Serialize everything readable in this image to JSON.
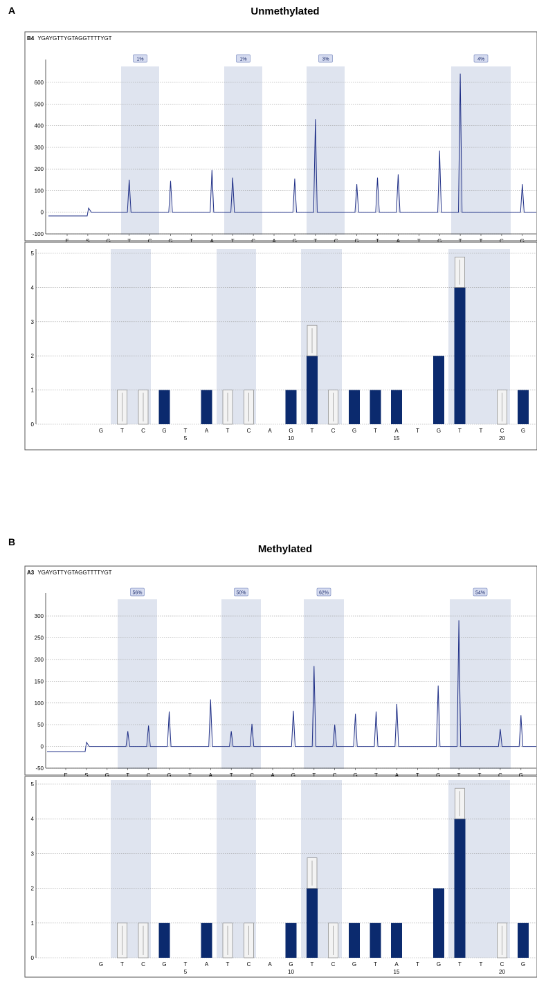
{
  "colors": {
    "trace": "#1f2f86",
    "bar": "#0b2a6e",
    "shade": "#dfe4ef",
    "badge_fill": "#d6dcf0",
    "badge_stroke": "#7f8fc2",
    "grid": "#9a9a9a",
    "frame": "#555555"
  },
  "panels": [
    {
      "letter": "A",
      "title": "Unmethylated",
      "well": "B4",
      "sequence": "YGAYGTTYGTAGGTTTTYGT",
      "percents": [
        "1%",
        "1%",
        "3%",
        "4%"
      ],
      "pyrogram_ticks": [
        "600",
        "500",
        "400",
        "300",
        "200",
        "100",
        "0",
        "-100"
      ],
      "histogram_ticks": [
        "5",
        "4",
        "3",
        "2",
        "1",
        "0"
      ]
    },
    {
      "letter": "B",
      "title": "Methylated",
      "well": "A3",
      "sequence": "YGAYGTTYGTAGGTTTTYGT",
      "percents": [
        "56%",
        "50%",
        "62%",
        "54%"
      ],
      "pyrogram_ticks": [
        "300",
        "250",
        "200",
        "150",
        "100",
        "50",
        "0",
        "-50"
      ],
      "histogram_ticks": [
        "5",
        "4",
        "3",
        "2",
        "1",
        "0"
      ]
    }
  ],
  "chart_data": [
    {
      "type": "line",
      "panel": "A",
      "title": "Unmethylated",
      "subtitle": "B4 YGAYGTTYGTAGGTTTTYGT",
      "ylim": [
        -100,
        680
      ],
      "dispensation": [
        "E",
        "S",
        "G",
        "T",
        "C",
        "G",
        "T",
        "A",
        "T",
        "C",
        "A",
        "G",
        "T",
        "C",
        "G",
        "T",
        "A",
        "T",
        "G",
        "T",
        "T",
        "C",
        "G"
      ],
      "position_labels": [
        "5",
        "10",
        "15",
        "20"
      ],
      "peaks": [
        {
          "label": "T",
          "value": 150
        },
        {
          "label": "G",
          "value": 145
        },
        {
          "label": "A",
          "value": 195
        },
        {
          "label": "T",
          "value": 160
        },
        {
          "label": "G",
          "value": 155
        },
        {
          "label": "T",
          "value": 430
        },
        {
          "label": "G",
          "value": 130
        },
        {
          "label": "T",
          "value": 160
        },
        {
          "label": "A",
          "value": 175
        },
        {
          "label": "G",
          "value": 285
        },
        {
          "label": "T",
          "value": 640
        },
        {
          "label": "G",
          "value": 130
        }
      ],
      "methylation_percent": [
        "1%",
        "1%",
        "3%",
        "4%"
      ]
    },
    {
      "type": "bar",
      "panel": "A",
      "categories": [
        "G",
        "T",
        "C",
        "G",
        "T",
        "A",
        "T",
        "C",
        "A",
        "G",
        "T",
        "C",
        "G",
        "T",
        "A",
        "T",
        "G",
        "T",
        "T",
        "C",
        "G"
      ],
      "values": [
        0,
        1,
        1,
        1,
        0,
        1,
        1,
        1,
        0,
        1,
        2,
        1,
        1,
        1,
        1,
        0,
        2,
        4,
        0,
        1,
        1
      ],
      "variable": [
        false,
        true,
        true,
        false,
        false,
        false,
        true,
        true,
        false,
        false,
        false,
        true,
        false,
        false,
        false,
        false,
        false,
        false,
        false,
        true,
        false
      ],
      "ylim": [
        0,
        5
      ],
      "position_labels": [
        "5",
        "10",
        "15",
        "20"
      ]
    },
    {
      "type": "line",
      "panel": "B",
      "title": "Methylated",
      "subtitle": "A3 YGAYGTTYGTAGGTTTTYGT",
      "ylim": [
        -50,
        340
      ],
      "dispensation": [
        "E",
        "S",
        "G",
        "T",
        "C",
        "G",
        "T",
        "A",
        "T",
        "C",
        "A",
        "G",
        "T",
        "C",
        "G",
        "T",
        "A",
        "T",
        "G",
        "T",
        "T",
        "C",
        "G"
      ],
      "position_labels": [
        "5",
        "10",
        "15",
        "20"
      ],
      "peaks": [
        {
          "label": "T",
          "value": 35
        },
        {
          "label": "C",
          "value": 48
        },
        {
          "label": "G",
          "value": 80
        },
        {
          "label": "A",
          "value": 108
        },
        {
          "label": "T",
          "value": 35
        },
        {
          "label": "C",
          "value": 52
        },
        {
          "label": "G",
          "value": 82
        },
        {
          "label": "T",
          "value": 185
        },
        {
          "label": "C",
          "value": 50
        },
        {
          "label": "G",
          "value": 75
        },
        {
          "label": "T",
          "value": 80
        },
        {
          "label": "A",
          "value": 98
        },
        {
          "label": "G",
          "value": 140
        },
        {
          "label": "T",
          "value": 290
        },
        {
          "label": "C",
          "value": 40
        },
        {
          "label": "G",
          "value": 72
        }
      ],
      "methylation_percent": [
        "56%",
        "50%",
        "62%",
        "54%"
      ]
    },
    {
      "type": "bar",
      "panel": "B",
      "categories": [
        "G",
        "T",
        "C",
        "G",
        "T",
        "A",
        "T",
        "C",
        "A",
        "G",
        "T",
        "C",
        "G",
        "T",
        "A",
        "T",
        "G",
        "T",
        "T",
        "C",
        "G"
      ],
      "values": [
        0,
        1,
        1,
        1,
        0,
        1,
        1,
        1,
        0,
        1,
        2,
        1,
        1,
        1,
        1,
        0,
        2,
        4,
        0,
        1,
        1
      ],
      "variable": [
        false,
        true,
        true,
        false,
        false,
        false,
        true,
        true,
        false,
        false,
        false,
        true,
        false,
        false,
        false,
        false,
        false,
        false,
        false,
        true,
        false
      ],
      "ylim": [
        0,
        5
      ],
      "position_labels": [
        "5",
        "10",
        "15",
        "20"
      ]
    }
  ]
}
